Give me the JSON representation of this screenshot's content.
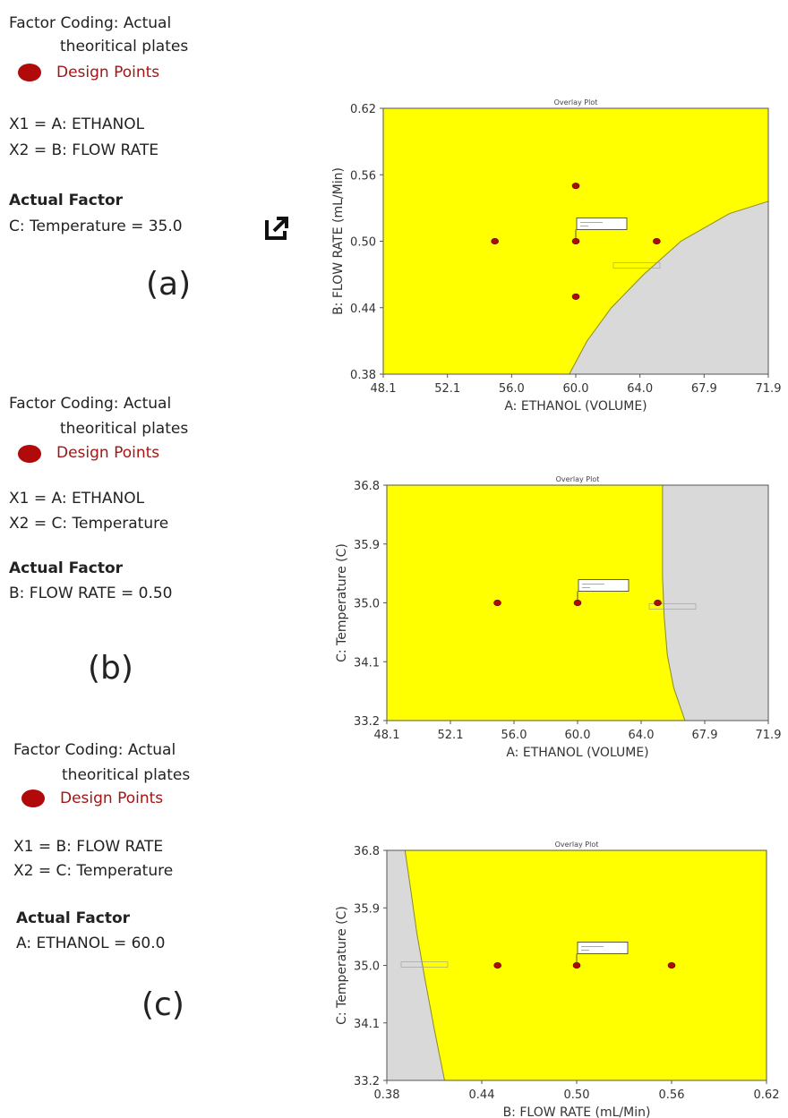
{
  "panels": [
    {
      "legend": {
        "coding": "Factor Coding: Actual",
        "response": "theoritical plates",
        "design_points": "Design Points",
        "x1": "X1 = A: ETHANOL",
        "x2": "X2 = B: FLOW RATE",
        "actual_factor_heading": "Actual Factor",
        "actual_factor": "C: Temperature = 35.0"
      },
      "label": "(a)"
    },
    {
      "legend": {
        "coding": "Factor Coding: Actual",
        "response": "theoritical plates",
        "design_points": "Design Points",
        "x1": "X1 = A: ETHANOL",
        "x2": "X2 = C: Temperature",
        "actual_factor_heading": "Actual Factor",
        "actual_factor": "B: FLOW RATE = 0.50"
      },
      "label": "(b)"
    },
    {
      "legend": {
        "coding": "Factor Coding: Actual",
        "response": "theoritical plates",
        "design_points": "Design Points",
        "x1": "X1 = B: FLOW RATE",
        "x2": "X2 = C: Temperature",
        "actual_factor_heading": "Actual Factor",
        "actual_factor": "A: ETHANOL  = 60.0"
      },
      "label": "(c)"
    }
  ],
  "colors": {
    "feasible": "#ffff00",
    "infeasible": "#d9d9d9",
    "design_point": "#b00a0a",
    "boundary": "#8a8a2a"
  },
  "icons": {
    "open_external": "open-external-icon"
  },
  "chart_data": [
    {
      "type": "area",
      "title": "Overlay Plot",
      "xlabel": "A: ETHANOL  (VOLUME)",
      "ylabel": "B: FLOW RATE (mL/Min)",
      "xlim": [
        48.1,
        71.9
      ],
      "ylim": [
        0.38,
        0.62
      ],
      "x_ticks": [
        "48.1",
        "52.1",
        "56.0",
        "60.0",
        "64.0",
        "67.9",
        "71.9"
      ],
      "y_ticks": [
        "0.38",
        "0.44",
        "0.50",
        "0.56",
        "0.62"
      ],
      "regions": [
        {
          "name": "feasible",
          "color": "#ffff00"
        },
        {
          "name": "infeasible",
          "color": "#d9d9d9",
          "boundary": [
            [
              59.6,
              0.38
            ],
            [
              60.7,
              0.41
            ],
            [
              62.2,
              0.44
            ],
            [
              64.2,
              0.47
            ],
            [
              66.5,
              0.5
            ],
            [
              69.5,
              0.525
            ],
            [
              71.9,
              0.536
            ]
          ]
        }
      ],
      "design_points": [
        [
          55.0,
          0.5
        ],
        [
          60.0,
          0.5
        ],
        [
          65.0,
          0.5
        ],
        [
          60.0,
          0.55
        ],
        [
          60.0,
          0.45
        ]
      ]
    },
    {
      "type": "area",
      "title": "Overlay Plot",
      "xlabel": "A: ETHANOL  (VOLUME)",
      "ylabel": "C: Temperature (C)",
      "xlim": [
        48.1,
        71.9
      ],
      "ylim": [
        33.2,
        36.8
      ],
      "x_ticks": [
        "48.1",
        "52.1",
        "56.0",
        "60.0",
        "64.0",
        "67.9",
        "71.9"
      ],
      "y_ticks": [
        "33.2",
        "34.1",
        "35.0",
        "35.9",
        "36.8"
      ],
      "regions": [
        {
          "name": "feasible",
          "color": "#ffff00"
        },
        {
          "name": "infeasible",
          "color": "#d9d9d9",
          "boundary": [
            [
              66.7,
              33.2
            ],
            [
              66.0,
              33.7
            ],
            [
              65.6,
              34.2
            ],
            [
              65.4,
              34.8
            ],
            [
              65.3,
              35.4
            ],
            [
              65.3,
              36.0
            ],
            [
              65.3,
              36.8
            ]
          ]
        }
      ],
      "design_points": [
        [
          55.0,
          35.0
        ],
        [
          60.0,
          35.0
        ],
        [
          65.0,
          35.0
        ]
      ]
    },
    {
      "type": "area",
      "title": "Overlay Plot",
      "xlabel": "B: FLOW RATE (mL/Min)",
      "ylabel": "C: Temperature (C)",
      "xlim": [
        0.38,
        0.62
      ],
      "ylim": [
        33.2,
        36.8
      ],
      "x_ticks": [
        "0.38",
        "0.44",
        "0.50",
        "0.56",
        "0.62"
      ],
      "y_ticks": [
        "33.2",
        "34.1",
        "35.0",
        "35.9",
        "36.8"
      ],
      "regions": [
        {
          "name": "feasible",
          "color": "#ffff00"
        },
        {
          "name": "infeasible",
          "color": "#d9d9d9",
          "boundary": [
            [
              0.3915,
              36.8
            ],
            [
              0.395,
              36.2
            ],
            [
              0.399,
              35.5
            ],
            [
              0.404,
              34.8
            ],
            [
              0.41,
              34.0
            ],
            [
              0.4165,
              33.2
            ]
          ]
        }
      ],
      "design_points": [
        [
          0.45,
          35.0
        ],
        [
          0.5,
          35.0
        ],
        [
          0.56,
          35.0
        ]
      ]
    }
  ]
}
